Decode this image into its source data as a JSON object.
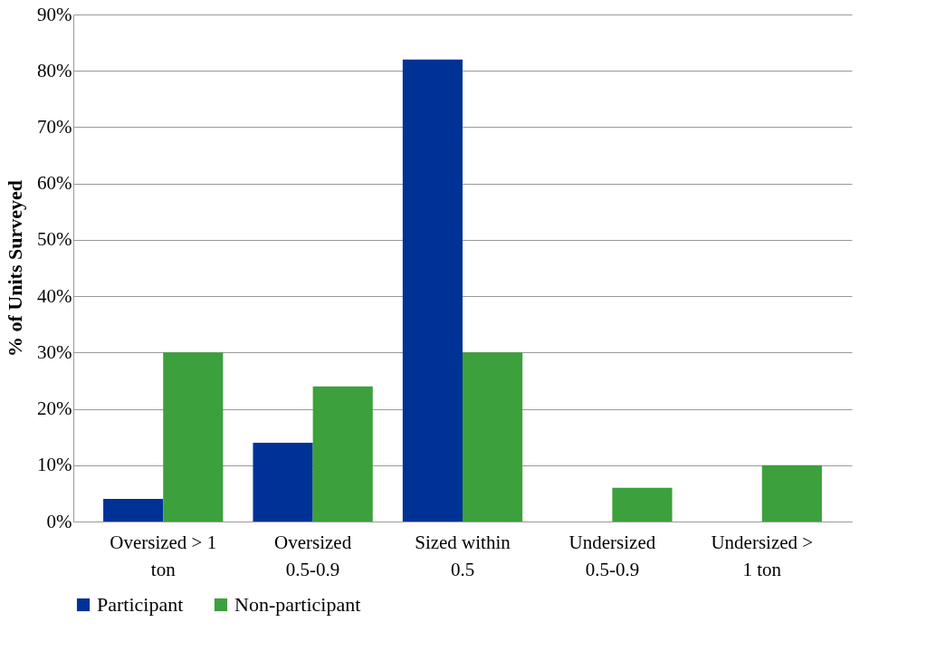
{
  "chart_data": {
    "type": "bar",
    "ylabel": "% of Units Surveyed",
    "categories": [
      "Oversized > 1 ton",
      "Oversized 0.5-0.9",
      "Sized within 0.5",
      "Undersized 0.5-0.9",
      "Undersized > 1 ton"
    ],
    "series": [
      {
        "name": "Participant",
        "color": "#003296",
        "values": [
          4,
          14,
          82,
          0,
          0
        ]
      },
      {
        "name": "Non-participant",
        "color": "#3ca03c",
        "values": [
          30,
          24,
          30,
          6,
          10
        ]
      }
    ],
    "ylim": [
      0,
      90
    ],
    "yticks": [
      {
        "value": 0,
        "label": "0%"
      },
      {
        "value": 10,
        "label": "10%"
      },
      {
        "value": 20,
        "label": "20%"
      },
      {
        "value": 30,
        "label": "30%"
      },
      {
        "value": 40,
        "label": "40%"
      },
      {
        "value": 50,
        "label": "50%"
      },
      {
        "value": 60,
        "label": "60%"
      },
      {
        "value": 70,
        "label": "70%"
      },
      {
        "value": 80,
        "label": "80%"
      },
      {
        "value": 90,
        "label": "90%"
      }
    ],
    "grid": "y",
    "legend": "bottom"
  }
}
